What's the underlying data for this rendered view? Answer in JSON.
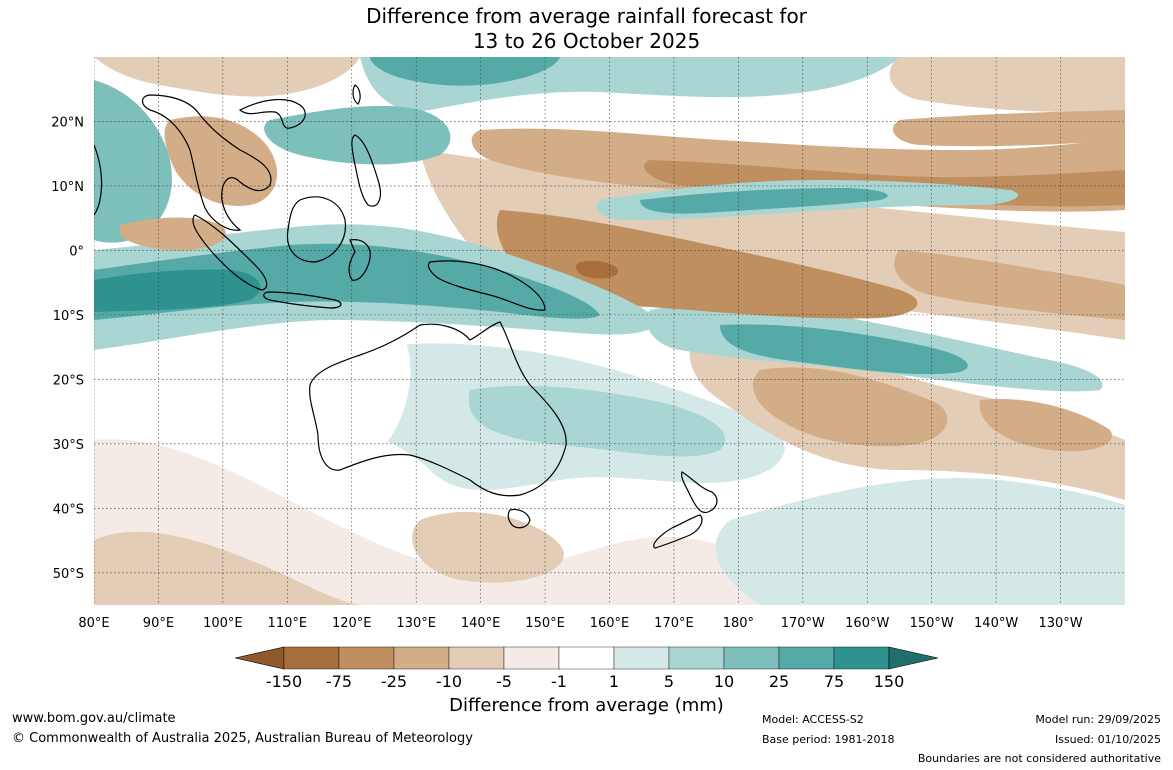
{
  "title": {
    "line1": "Difference from average rainfall forecast for",
    "line2": "13 to 26 October 2025"
  },
  "map": {
    "lon_labels": [
      "80°E",
      "90°E",
      "100°E",
      "110°E",
      "120°E",
      "130°E",
      "140°E",
      "150°E",
      "160°E",
      "170°E",
      "180°",
      "170°W",
      "160°W",
      "150°W",
      "140°W",
      "130°W"
    ],
    "lat_labels": [
      "20°N",
      "10°N",
      "0°",
      "10°S",
      "20°S",
      "30°S",
      "40°S",
      "50°S"
    ],
    "lon_range": [
      80,
      240
    ],
    "lat_range": [
      -55,
      30
    ],
    "gridlines": true,
    "colors": {
      "dry_150": "#a66f3c",
      "dry_75": "#bf8f60",
      "dry_25": "#d3ad88",
      "dry_10": "#e4cdb7",
      "dry_5": "#f4ebe6",
      "neutral": "#ffffff",
      "wet_5": "#d4e9e7",
      "wet_10": "#a9d6d2",
      "wet_25": "#7dbfba",
      "wet_75": "#55aaa7",
      "wet_150": "#2e938f"
    }
  },
  "colorbar": {
    "tick_labels": [
      "-150",
      "-75",
      "-25",
      "-10",
      "-5",
      "-1",
      "1",
      "5",
      "10",
      "25",
      "75",
      "150"
    ],
    "segment_colors": [
      "#a66f3c",
      "#bf8f60",
      "#d3ad88",
      "#e4cdb7",
      "#f4ebe6",
      "#ffffff",
      "#d4e9e7",
      "#a9d6d2",
      "#7dbfba",
      "#55aaa7",
      "#2e938f"
    ],
    "under_color": "#8e5a2b",
    "over_color": "#1f6f6c",
    "title": "Difference from average (mm)"
  },
  "footer": {
    "url": "www.bom.gov.au/climate",
    "copyright": "© Commonwealth of Australia 2025, Australian Bureau of Meteorology",
    "model": "Model: ACCESS-S2",
    "base_period": "Base period: 1981-2018",
    "model_run": "Model run: 29/09/2025",
    "issued": "Issued: 01/10/2025",
    "disclaimer": "Boundaries are not considered authoritative"
  }
}
